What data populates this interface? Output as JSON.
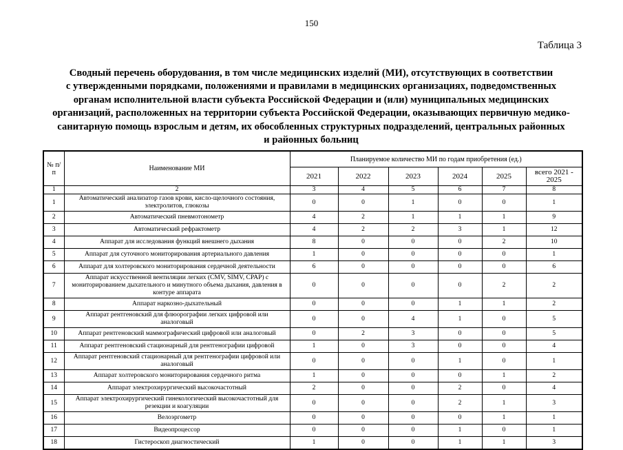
{
  "page": {
    "number": "150",
    "table_label": "Таблица 3",
    "title_lines": [
      "Сводный перечень оборудования, в том числе медицинских изделий (МИ), отсутствующих в соответствии",
      "с утвержденными порядками, положениями и правилами в медицинских организациях, подведомственных",
      "органам исполнительной власти субъекта Российской Федерации и (или) муниципальных медицинских",
      "организаций, расположенных на территории субъекта Российской Федерации, оказывающих первичную медико-",
      "санитарную помощь взрослым и детям, их обособленных структурных подразделений, центральных районных",
      "и районных больниц"
    ]
  },
  "table": {
    "header": {
      "num_label": "№ п/п",
      "name_label": "Наименование МИ",
      "group_label": "Планируемое количество МИ по годам приобретения (ед.)",
      "year_labels": [
        "2021",
        "2022",
        "2023",
        "2024",
        "2025",
        "всего 2021 - 2025"
      ],
      "column_numbers": [
        "1",
        "2",
        "3",
        "4",
        "5",
        "6",
        "7",
        "8"
      ]
    },
    "rows": [
      {
        "num": "1",
        "name": "Автоматический анализатор газов крови, кисло-щелочного состояния, электролитов, глюкозы",
        "values": [
          "0",
          "0",
          "1",
          "0",
          "0",
          "1"
        ]
      },
      {
        "num": "2",
        "name": "Автоматический пневмотонометр",
        "values": [
          "4",
          "2",
          "1",
          "1",
          "1",
          "9"
        ]
      },
      {
        "num": "3",
        "name": "Автоматический рефрактометр",
        "values": [
          "4",
          "2",
          "2",
          "3",
          "1",
          "12"
        ]
      },
      {
        "num": "4",
        "name": "Аппарат для исследования функций внешнего дыхания",
        "values": [
          "8",
          "0",
          "0",
          "0",
          "2",
          "10"
        ]
      },
      {
        "num": "5",
        "name": "Аппарат для суточного мониторирования артериального давления",
        "values": [
          "1",
          "0",
          "0",
          "0",
          "0",
          "1"
        ]
      },
      {
        "num": "6",
        "name": "Аппарат для холтеровского мониторирования сердечной деятельности",
        "values": [
          "6",
          "0",
          "0",
          "0",
          "0",
          "6"
        ]
      },
      {
        "num": "7",
        "name": "Аппарат искусственной вентиляции легких (CMV, SIMV, CPAP) с мониторированием дыхательного и минутного объема дыхания, давления в контуре аппарата",
        "values": [
          "0",
          "0",
          "0",
          "0",
          "2",
          "2"
        ]
      },
      {
        "num": "8",
        "name": "Аппарат наркозно-дыхательный",
        "values": [
          "0",
          "0",
          "0",
          "1",
          "1",
          "2"
        ]
      },
      {
        "num": "9",
        "name": "Аппарат рентгеновский для флюорографии легких цифровой или аналоговый",
        "values": [
          "0",
          "0",
          "4",
          "1",
          "0",
          "5"
        ]
      },
      {
        "num": "10",
        "name": "Аппарат рентгеновский маммографический цифровой или аналоговый",
        "values": [
          "0",
          "2",
          "3",
          "0",
          "0",
          "5"
        ]
      },
      {
        "num": "11",
        "name": "Аппарат рентгеновский стационарный для рентгенографии цифровой",
        "values": [
          "1",
          "0",
          "3",
          "0",
          "0",
          "4"
        ]
      },
      {
        "num": "12",
        "name": "Аппарат рентгеновский стационарный для рентгенографии цифровой или аналоговый",
        "values": [
          "0",
          "0",
          "0",
          "1",
          "0",
          "1"
        ]
      },
      {
        "num": "13",
        "name": "Аппарат холтеровского мониторирования сердечного ритма",
        "values": [
          "1",
          "0",
          "0",
          "0",
          "1",
          "2"
        ]
      },
      {
        "num": "14",
        "name": "Аппарат электрохирургический высокочастотный",
        "values": [
          "2",
          "0",
          "0",
          "2",
          "0",
          "4"
        ]
      },
      {
        "num": "15",
        "name": "Аппарат электрохирургический гинекологический высокочастотный для резекции и коагуляции",
        "values": [
          "0",
          "0",
          "0",
          "2",
          "1",
          "3"
        ]
      },
      {
        "num": "16",
        "name": "Велоэргометр",
        "values": [
          "0",
          "0",
          "0",
          "0",
          "1",
          "1"
        ]
      },
      {
        "num": "17",
        "name": "Видеопроцессор",
        "values": [
          "0",
          "0",
          "0",
          "1",
          "0",
          "1"
        ]
      },
      {
        "num": "18",
        "name": "Гистероскоп диагностический",
        "values": [
          "1",
          "0",
          "0",
          "1",
          "1",
          "3"
        ]
      }
    ]
  }
}
